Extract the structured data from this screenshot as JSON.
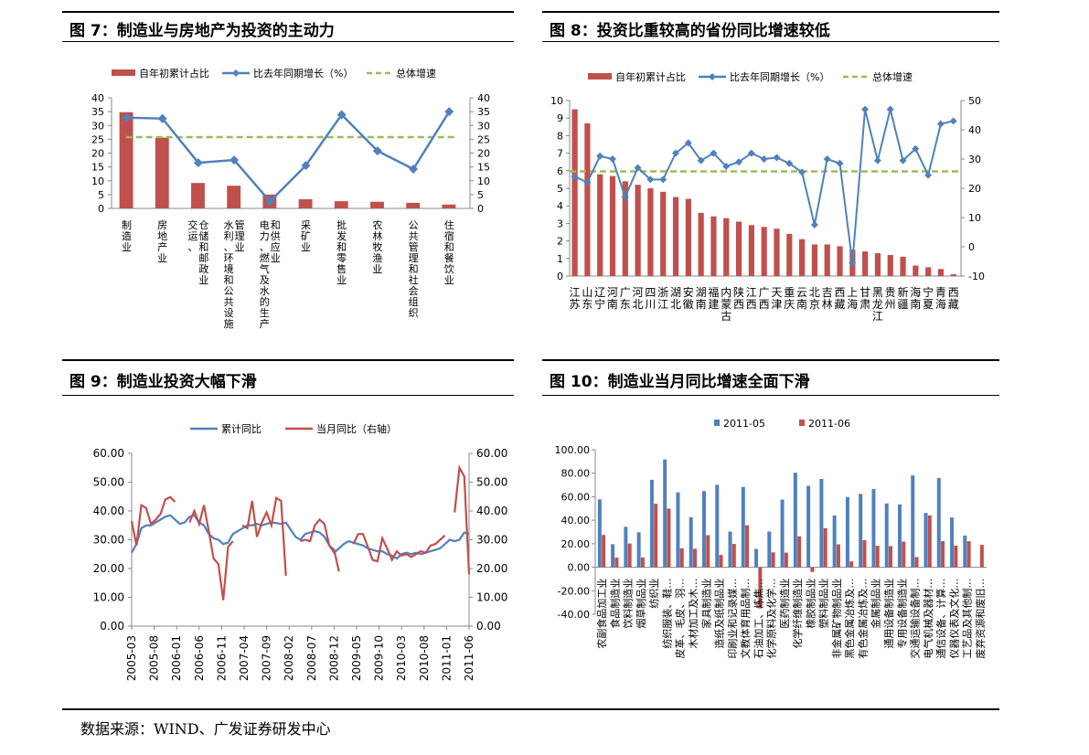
{
  "footer": {
    "source": "数据来源：WIND、广发证券研发中心"
  },
  "charts": [
    {
      "title": "图 7：制造业与房地产为投资的主动力",
      "chart_data": {
        "type": "bar+line",
        "categories": [
          "制造业",
          "房地产业",
          "交运、仓储和邮政业",
          "水利、环境和公共设施管理业",
          "电力、燃气及水的生产和供应业",
          "采矿业",
          "批发和零售业",
          "农林牧渔业",
          "公共管理和社会组织",
          "住宿和餐饮业"
        ],
        "y_ticks": [
          "40",
          "35",
          "30",
          "25",
          "20",
          "15",
          "10",
          "5",
          "0"
        ],
        "y2_ticks": [
          "40",
          "35",
          "30",
          "25",
          "20",
          "15",
          "10",
          "5",
          "0"
        ],
        "ylim": [
          0,
          40
        ],
        "y2lim": [
          0,
          40
        ],
        "series": [
          {
            "name": "自年初累计占比",
            "kind": "bar",
            "color": "#c0504d",
            "values": [
              34.8,
              25.6,
              9.2,
              8.2,
              5.0,
              3.3,
              2.6,
              2.4,
              2.0,
              1.4
            ]
          },
          {
            "name": "比去年同期增长（%）",
            "kind": "line",
            "color": "#4f81bd",
            "values": [
              32.8,
              32.5,
              16.5,
              17.5,
              2.5,
              15.5,
              33.9,
              20.8,
              14.2,
              35.0
            ]
          },
          {
            "name": "总体增速",
            "kind": "dashed",
            "color": "#9bbb59",
            "value": 25.8
          }
        ]
      }
    },
    {
      "title": "图 8：投资比重较高的省份同比增速较低",
      "chart_data": {
        "type": "bar+line",
        "categories": [
          "江苏",
          "山东",
          "辽宁",
          "河南",
          "广东",
          "河北",
          "四川",
          "浙江",
          "湖北",
          "安徽",
          "湖南",
          "福建",
          "内蒙古",
          "陕西",
          "江西",
          "广西",
          "天津",
          "重庆",
          "云南",
          "北京",
          "吉林",
          "西藏",
          "上海",
          "甘肃",
          "黑龙江",
          "贵州",
          "新疆",
          "海南",
          "宁夏",
          "青海",
          "西藏"
        ],
        "y_ticks": [
          "10",
          "9",
          "8",
          "7",
          "6",
          "5",
          "4",
          "3",
          "2",
          "1",
          "0"
        ],
        "y2_ticks": [
          "50",
          "40",
          "30",
          "20",
          "10",
          "0",
          "-10"
        ],
        "ylim": [
          0,
          10
        ],
        "y2lim": [
          -10,
          50
        ],
        "series": [
          {
            "name": "自年初累计占比",
            "kind": "bar",
            "color": "#c0504d",
            "values": [
              9.5,
              8.7,
              5.8,
              5.7,
              5.4,
              5.2,
              5.0,
              4.8,
              4.5,
              4.4,
              3.6,
              3.4,
              3.3,
              3.1,
              2.9,
              2.8,
              2.7,
              2.4,
              2.1,
              1.8,
              1.8,
              1.7,
              1.5,
              1.4,
              1.3,
              1.2,
              1.1,
              0.6,
              0.5,
              0.4,
              0.1
            ]
          },
          {
            "name": "比去年同期增长（%）",
            "kind": "line",
            "color": "#4f81bd",
            "values": [
              24,
              22,
              31,
              30,
              17,
              27,
              23,
              23,
              32,
              35.5,
              29.5,
              32,
              27.5,
              29,
              32,
              30,
              30.5,
              28.5,
              25.5,
              7.5,
              30,
              28.5,
              -5.5,
              47,
              29.5,
              47,
              29.5,
              33.5,
              24.5,
              42,
              43
            ]
          },
          {
            "name": "总体增速",
            "kind": "dashed",
            "color": "#9bbb59",
            "value": 25.8
          }
        ]
      }
    },
    {
      "title": "图 9：制造业投资大幅下滑",
      "chart_data": {
        "type": "line",
        "x_ticks": [
          "2005-03",
          "2005-08",
          "2006-01",
          "2006-06",
          "2006-11",
          "2007-04",
          "2007-09",
          "2008-02",
          "2008-07",
          "2008-12",
          "2009-05",
          "2009-10",
          "2010-03",
          "2010-08",
          "2011-01",
          "2011-06"
        ],
        "y_ticks": [
          "60.00",
          "50.00",
          "40.00",
          "30.00",
          "20.00",
          "10.00",
          "0.00"
        ],
        "y2_ticks": [
          "60.00",
          "50.00",
          "40.00",
          "30.00",
          "20.00",
          "10.00",
          "0.00"
        ],
        "ylim": [
          0,
          60
        ],
        "y2lim": [
          0,
          60
        ],
        "series": [
          {
            "name": "累计同比",
            "color": "#4f81bd",
            "axis": "left",
            "values": [
              25.5,
              28.5,
              34,
              35,
              35,
              36,
              37,
              38,
              38.5,
              37,
              35.5,
              36,
              38,
              38.5,
              36,
              35,
              32,
              30.5,
              30,
              28.5,
              29,
              32,
              33,
              34,
              35,
              35,
              35.5,
              35,
              35.5,
              36,
              35.8,
              35.5,
              36,
              33.5,
              31,
              30,
              32,
              32.5,
              33,
              32.5,
              31,
              28,
              25.5,
              27,
              28.5,
              29.5,
              29,
              28.5,
              28,
              27,
              26.5,
              26,
              26,
              25,
              24.5,
              23.5,
              25,
              25.5,
              25,
              25.5,
              25,
              25.5,
              26,
              26.5,
              27,
              28.5,
              30,
              29.5,
              30,
              32.5,
              32
            ]
          },
          {
            "name": "当月同比（右轴）",
            "color": "#c0504d",
            "axis": "right",
            "values": [
              36.5,
              28,
              42,
              41,
              35.5,
              37,
              39,
              44,
              44.8,
              43.2,
              null,
              null,
              36,
              40,
              35.5,
              42,
              33,
              23.5,
              21.5,
              9,
              27.5,
              29.5,
              null,
              35,
              34,
              43.5,
              31,
              36,
              39.5,
              35,
              44.5,
              43.5,
              17.5,
              null,
              null,
              29.5,
              30,
              29.5,
              35,
              37,
              35.5,
              28,
              26.5,
              19,
              null,
              null,
              28.5,
              32,
              32,
              27.5,
              23,
              22.5,
              30.5,
              27,
              23,
              26,
              24.5,
              25,
              24,
              25,
              26,
              25.5,
              28,
              28.5,
              30,
              31.5,
              null,
              39.5,
              55,
              52,
              18
            ]
          }
        ]
      }
    },
    {
      "title": "图 10：制造业当月同比增速全面下滑",
      "chart_data": {
        "type": "bar",
        "categories": [
          "农副食品加工业",
          "食品制造业",
          "饮料制造业",
          "烟草制品业",
          "纺织业",
          "纺织服装、鞋…",
          "皮革、毛皮、羽…",
          "木材加工及木…",
          "家具制造业",
          "造纸及纸制品业",
          "印刷业和记录媒…",
          "文教体育用品制…",
          "石油加工、炼焦…",
          "化学原料及化学…",
          "医药制造业",
          "化学纤维制造业",
          "橡胶制品业",
          "塑料制品业",
          "非金属矿物制品业",
          "黑色金属冶炼及…",
          "有色金属冶炼及…",
          "金属制品业",
          "通用设备制造业",
          "专用设备制造业",
          "交通运输设备制…",
          "电气机械及器材…",
          "通信设备、计算…",
          "仪器仪表及文化…",
          "工艺品及其他制…",
          "废弃资源和废旧…"
        ],
        "y_ticks": [
          "100.00",
          "80.00",
          "60.00",
          "40.00",
          "20.00",
          "0.00",
          "-20.00",
          "-40.00"
        ],
        "ylim": [
          -40,
          100
        ],
        "series": [
          {
            "name": "2011-05",
            "color": "#4f81bd",
            "values": [
              57.8,
              19.6,
              34.4,
              29.7,
              74.4,
              91.7,
              63.7,
              42.6,
              64.8,
              70.1,
              30.4,
              68.3,
              15.6,
              30.4,
              57.6,
              80.4,
              69.3,
              75.1,
              44.0,
              59.7,
              62.4,
              66.6,
              54.3,
              53.4,
              78.1,
              46.2,
              75.9,
              42.3,
              27.0,
              0
            ]
          },
          {
            "name": "2011-06",
            "color": "#c0504d",
            "values": [
              27.5,
              8.2,
              20.2,
              8.3,
              54.0,
              49.9,
              16.1,
              15.7,
              27.3,
              10.5,
              19.8,
              35.7,
              -35.0,
              12.7,
              12.4,
              26.3,
              -4.0,
              33.2,
              19.5,
              5.0,
              23.0,
              18.2,
              18.0,
              21.8,
              8.7,
              44.1,
              22.2,
              18.4,
              22.1,
              19.0
            ]
          }
        ]
      }
    }
  ]
}
